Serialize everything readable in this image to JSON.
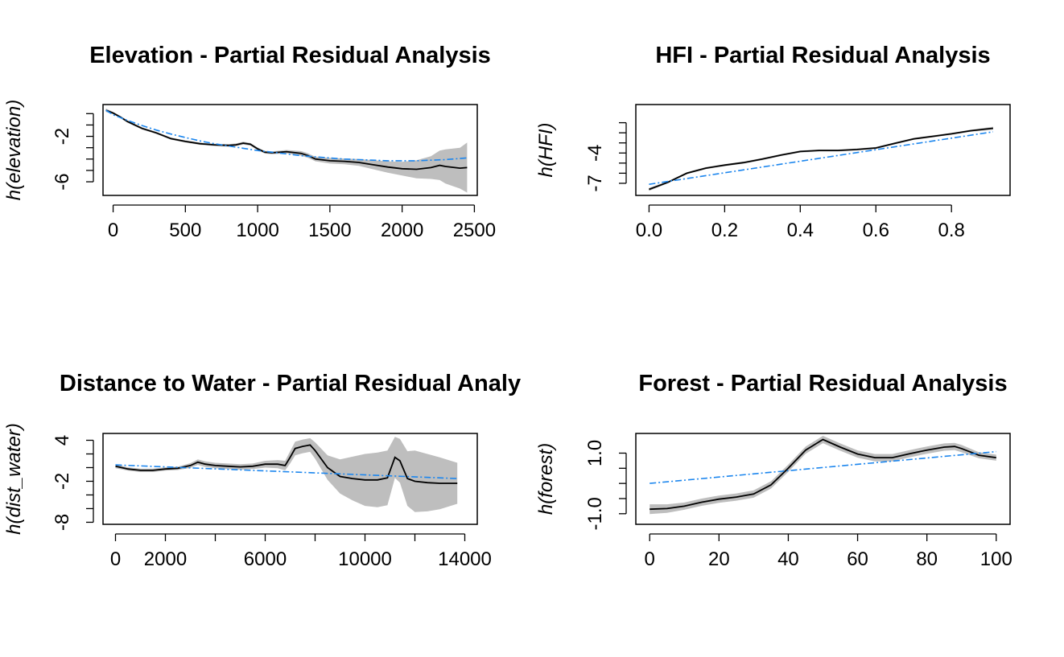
{
  "colors": {
    "band": "#bebebe",
    "fit": "#000000",
    "linear_fit": "#1c86ee",
    "axis": "#000000"
  },
  "chart_data": [
    {
      "type": "line",
      "title": "Elevation - Partial Residual Analysis",
      "xlabel": "",
      "ylabel": "h(elevation)",
      "xlim": [
        -70,
        2520
      ],
      "ylim": [
        -7.2,
        0.8
      ],
      "x_ticks": [
        0,
        500,
        1000,
        1500,
        2000,
        2500
      ],
      "x_tick_labels": [
        "0",
        "500",
        "1000",
        "1500",
        "2000",
        "2500"
      ],
      "y_ticks": [
        0,
        -1,
        -2,
        -3,
        -4,
        -5,
        -6
      ],
      "y_tick_labels": [
        "",
        "",
        "-2",
        "",
        "",
        "",
        "-6"
      ],
      "series": [
        {
          "kind": "smooth",
          "x": [
            -50,
            0,
            50,
            100,
            200,
            300,
            400,
            500,
            600,
            700,
            800,
            850,
            900,
            950,
            1000,
            1050,
            1100,
            1200,
            1300,
            1350,
            1400,
            1500,
            1600,
            1700,
            1800,
            1900,
            2000,
            2100,
            2200,
            2260,
            2300,
            2400,
            2450
          ],
          "y": [
            0.3,
            0.05,
            -0.3,
            -0.7,
            -1.3,
            -1.7,
            -2.2,
            -2.45,
            -2.65,
            -2.75,
            -2.8,
            -2.75,
            -2.6,
            -2.7,
            -3.1,
            -3.4,
            -3.45,
            -3.35,
            -3.5,
            -3.7,
            -4.0,
            -4.15,
            -4.2,
            -4.3,
            -4.5,
            -4.7,
            -4.85,
            -4.9,
            -4.75,
            -4.55,
            -4.65,
            -4.8,
            -4.75
          ],
          "band_half_width": [
            0.15,
            0.1,
            0.1,
            0.1,
            0.1,
            0.1,
            0.1,
            0.1,
            0.1,
            0.1,
            0.12,
            0.12,
            0.12,
            0.12,
            0.12,
            0.12,
            0.12,
            0.15,
            0.2,
            0.2,
            0.2,
            0.25,
            0.25,
            0.3,
            0.4,
            0.5,
            0.6,
            0.8,
            1.0,
            1.3,
            1.5,
            1.8,
            2.2
          ]
        },
        {
          "kind": "linear",
          "x": [
            -50,
            0,
            100,
            200,
            300,
            400,
            500,
            600,
            700,
            800,
            900,
            1000,
            1100,
            1200,
            1300,
            1400,
            1500,
            1600,
            1700,
            1800,
            1900,
            2000,
            2100,
            2200,
            2300,
            2400,
            2450
          ],
          "y": [
            0.3,
            -0.1,
            -0.6,
            -1.05,
            -1.45,
            -1.8,
            -2.1,
            -2.4,
            -2.65,
            -2.85,
            -3.05,
            -3.25,
            -3.4,
            -3.55,
            -3.7,
            -3.8,
            -3.9,
            -4.0,
            -4.05,
            -4.1,
            -4.15,
            -4.15,
            -4.15,
            -4.1,
            -4.05,
            -3.95,
            -3.9
          ]
        }
      ]
    },
    {
      "type": "line",
      "title": "HFI - Partial Residual Analysis",
      "xlabel": "",
      "ylabel": "h(HFI)",
      "xlim": [
        -0.035,
        0.955
      ],
      "ylim": [
        -8.2,
        0.8
      ],
      "x_ticks": [
        0.0,
        0.2,
        0.4,
        0.6,
        0.8
      ],
      "x_tick_labels": [
        "0.0",
        "0.2",
        "0.4",
        "0.6",
        "0.8"
      ],
      "y_ticks": [
        -1,
        -2,
        -3,
        -4,
        -5,
        -6,
        -7
      ],
      "y_tick_labels": [
        "",
        "",
        "",
        "-4",
        "",
        "",
        "-7"
      ],
      "series": [
        {
          "kind": "smooth",
          "x": [
            0.0,
            0.05,
            0.1,
            0.15,
            0.2,
            0.25,
            0.3,
            0.35,
            0.4,
            0.45,
            0.5,
            0.55,
            0.6,
            0.65,
            0.7,
            0.75,
            0.8,
            0.85,
            0.91
          ],
          "y": [
            -7.6,
            -6.9,
            -6.0,
            -5.5,
            -5.2,
            -4.95,
            -4.6,
            -4.2,
            -3.85,
            -3.75,
            -3.75,
            -3.65,
            -3.5,
            -3.05,
            -2.6,
            -2.35,
            -2.1,
            -1.8,
            -1.55
          ],
          "band_half_width": [
            0.15,
            0.1,
            0.1,
            0.1,
            0.1,
            0.1,
            0.1,
            0.1,
            0.1,
            0.1,
            0.1,
            0.1,
            0.1,
            0.1,
            0.1,
            0.1,
            0.1,
            0.1,
            0.15
          ]
        },
        {
          "kind": "linear",
          "x": [
            0.0,
            0.91
          ],
          "y": [
            -7.1,
            -1.9
          ]
        }
      ]
    },
    {
      "type": "line",
      "title": "Distance to Water - Partial Residual Analy",
      "xlabel": "",
      "ylabel": "h(dist_water)",
      "xlim": [
        -500,
        14500
      ],
      "ylim": [
        -8.3,
        5.0
      ],
      "x_ticks": [
        0,
        2000,
        4000,
        6000,
        8000,
        10000,
        12000,
        14000
      ],
      "x_tick_labels": [
        "0",
        "2000",
        "",
        "6000",
        "",
        "10000",
        "",
        "14000"
      ],
      "y_ticks": [
        4,
        2,
        0,
        -2,
        -4,
        -6,
        -8
      ],
      "y_tick_labels": [
        "4",
        "",
        "",
        "-2",
        "",
        "",
        "-8"
      ],
      "series": [
        {
          "kind": "smooth",
          "x": [
            0,
            500,
            1000,
            1500,
            2000,
            2500,
            3000,
            3300,
            3600,
            4000,
            4500,
            5000,
            5500,
            6000,
            6500,
            6800,
            7000,
            7200,
            7500,
            7800,
            8000,
            8500,
            9000,
            9500,
            10000,
            10500,
            10900,
            11200,
            11400,
            11700,
            12000,
            12500,
            13000,
            13700
          ],
          "y": [
            0.2,
            -0.2,
            -0.4,
            -0.4,
            -0.2,
            -0.1,
            0.3,
            0.8,
            0.5,
            0.3,
            0.2,
            0.1,
            0.2,
            0.5,
            0.5,
            0.3,
            1.5,
            2.8,
            3.1,
            3.3,
            2.5,
            0.0,
            -1.3,
            -1.6,
            -1.8,
            -1.8,
            -1.5,
            1.5,
            1.0,
            -1.6,
            -2.0,
            -2.2,
            -2.3,
            -2.3
          ],
          "band_half_width": [
            0.3,
            0.25,
            0.25,
            0.25,
            0.25,
            0.25,
            0.35,
            0.4,
            0.4,
            0.4,
            0.4,
            0.4,
            0.4,
            0.5,
            0.6,
            0.7,
            0.9,
            1.0,
            1.0,
            1.0,
            1.2,
            1.8,
            2.5,
            3.2,
            3.8,
            4.0,
            4.0,
            3.0,
            3.2,
            4.0,
            4.5,
            4.2,
            3.8,
            3.0
          ]
        },
        {
          "kind": "linear",
          "x": [
            0,
            13700
          ],
          "y": [
            0.4,
            -1.6
          ]
        }
      ]
    },
    {
      "type": "line",
      "title": "Forest - Partial Residual Analysis",
      "xlabel": "",
      "ylabel": "h(forest)",
      "xlim": [
        -4,
        104
      ],
      "ylim": [
        -1.35,
        1.65
      ],
      "x_ticks": [
        0,
        20,
        40,
        60,
        80,
        100
      ],
      "x_tick_labels": [
        "0",
        "20",
        "40",
        "60",
        "80",
        "100"
      ],
      "y_ticks": [
        1.0,
        0.5,
        0.0,
        -0.5,
        -1.0
      ],
      "y_tick_labels": [
        "1.0",
        "",
        "",
        "",
        "-1.0"
      ],
      "series": [
        {
          "kind": "smooth",
          "x": [
            0,
            5,
            10,
            15,
            20,
            25,
            30,
            35,
            40,
            45,
            50,
            55,
            60,
            65,
            70,
            75,
            80,
            85,
            88,
            90,
            95,
            100
          ],
          "y": [
            -0.85,
            -0.83,
            -0.75,
            -0.62,
            -0.52,
            -0.45,
            -0.35,
            -0.05,
            0.5,
            1.1,
            1.45,
            1.2,
            0.97,
            0.85,
            0.85,
            0.98,
            1.1,
            1.2,
            1.22,
            1.15,
            0.93,
            0.85
          ],
          "band_half_width": [
            0.16,
            0.14,
            0.12,
            0.12,
            0.12,
            0.12,
            0.12,
            0.12,
            0.12,
            0.12,
            0.12,
            0.12,
            0.12,
            0.12,
            0.12,
            0.12,
            0.12,
            0.12,
            0.12,
            0.12,
            0.1,
            0.1
          ]
        },
        {
          "kind": "linear",
          "x": [
            0,
            100
          ],
          "y": [
            0.0,
            1.05
          ]
        }
      ]
    }
  ]
}
